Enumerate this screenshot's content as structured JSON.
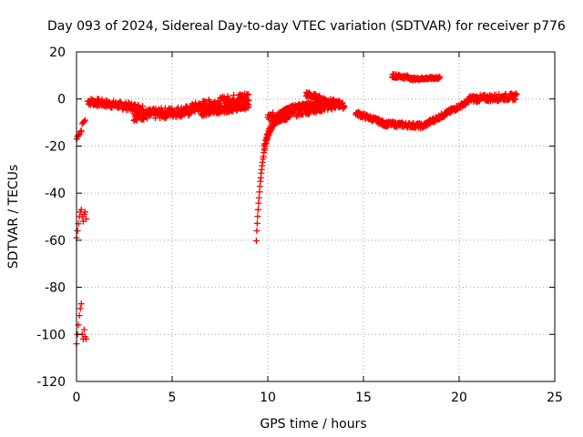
{
  "chart_data": {
    "type": "scatter",
    "title": "Day 093 of 2024, Sidereal Day-to-day VTEC variation (SDTVAR) for receiver p776",
    "xlabel": "GPS time / hours",
    "ylabel": "SDTVAR / TECUs",
    "xlim": [
      0,
      25
    ],
    "ylim": [
      -120,
      20
    ],
    "xticks": [
      0,
      5,
      10,
      15,
      20,
      25
    ],
    "xtick_labels": [
      "0",
      "5",
      "10",
      "15",
      "20",
      "25"
    ],
    "yticks": [
      20,
      0,
      -20,
      -40,
      -60,
      -80,
      -100,
      -120
    ],
    "ytick_labels": [
      "20",
      "0",
      "-20",
      "-40",
      "-60",
      "-80",
      "-100",
      "-120"
    ],
    "grid": true,
    "marker": "+",
    "color": "#ff0000",
    "series": [
      {
        "name": "SDTVAR",
        "x": [
          0.02,
          0.05,
          0.1,
          0.15,
          0.2,
          0.25,
          0.3,
          0.35,
          0.4,
          0.45,
          0.0,
          0.05,
          0.1,
          0.15,
          0.2,
          0.25,
          0.3,
          0.35,
          0.4,
          0.45,
          0.5,
          0.0,
          0.05,
          0.1,
          0.15,
          0.2,
          0.25,
          0.3,
          0.35,
          0.4,
          0.45,
          0.5
        ],
        "y": [
          -17,
          -16,
          -15.5,
          -15,
          -14,
          -13.5,
          -10.5,
          -10,
          -9.5,
          -9,
          -59,
          -56,
          -53,
          -50,
          -48,
          -47,
          -50,
          -52,
          -49,
          -48,
          -51,
          -104,
          -100,
          -96,
          -92,
          -89,
          -87,
          -100,
          -102,
          -98,
          -101,
          -102
        ]
      }
    ],
    "clusters": [
      {
        "x_range": [
          0.6,
          3.5
        ],
        "y_start": -1,
        "y_end": -4,
        "jitter": 1.6
      },
      {
        "x_range": [
          3.0,
          6.0
        ],
        "y_start": -7,
        "y_end": -5,
        "jitter": 2.2
      },
      {
        "x_range": [
          6.0,
          9.0
        ],
        "y_start": -4,
        "y_end": 1,
        "jitter": 2.2
      },
      {
        "x_range": [
          6.5,
          9.0
        ],
        "y_start": -6,
        "y_end": -3,
        "jitter": 1.2
      },
      {
        "x_range": [
          10.0,
          13.8
        ],
        "y_start": -8,
        "y_end": -2,
        "jitter": 1.8
      },
      {
        "x_range": [
          12.0,
          14.0
        ],
        "y_start": 2,
        "y_end": -3,
        "jitter": 1.2
      },
      {
        "x_range": [
          14.6,
          16.0
        ],
        "y_start": -6,
        "y_end": -10,
        "jitter": 1.0
      },
      {
        "x_range": [
          16.0,
          18.2
        ],
        "y_start": -10.5,
        "y_end": -11.5,
        "jitter": 1.0
      },
      {
        "x_range": [
          18.2,
          20.5
        ],
        "y_start": -11,
        "y_end": -1,
        "jitter": 1.0
      },
      {
        "x_range": [
          20.5,
          23.0
        ],
        "y_start": 0,
        "y_end": 1,
        "jitter": 1.4
      },
      {
        "x_range": [
          16.5,
          17.5
        ],
        "y_start": 10,
        "y_end": 9,
        "jitter": 0.8
      },
      {
        "x_range": [
          17.5,
          19.0
        ],
        "y_start": 8.5,
        "y_end": 9,
        "jitter": 0.5
      }
    ],
    "spikes": [
      {
        "x_start": 9.4,
        "x_end": 11.0,
        "y_start": -60,
        "y_end": -8
      },
      {
        "x_start": 9.8,
        "x_end": 12.5,
        "y_start": -20,
        "y_end": -2
      }
    ]
  }
}
